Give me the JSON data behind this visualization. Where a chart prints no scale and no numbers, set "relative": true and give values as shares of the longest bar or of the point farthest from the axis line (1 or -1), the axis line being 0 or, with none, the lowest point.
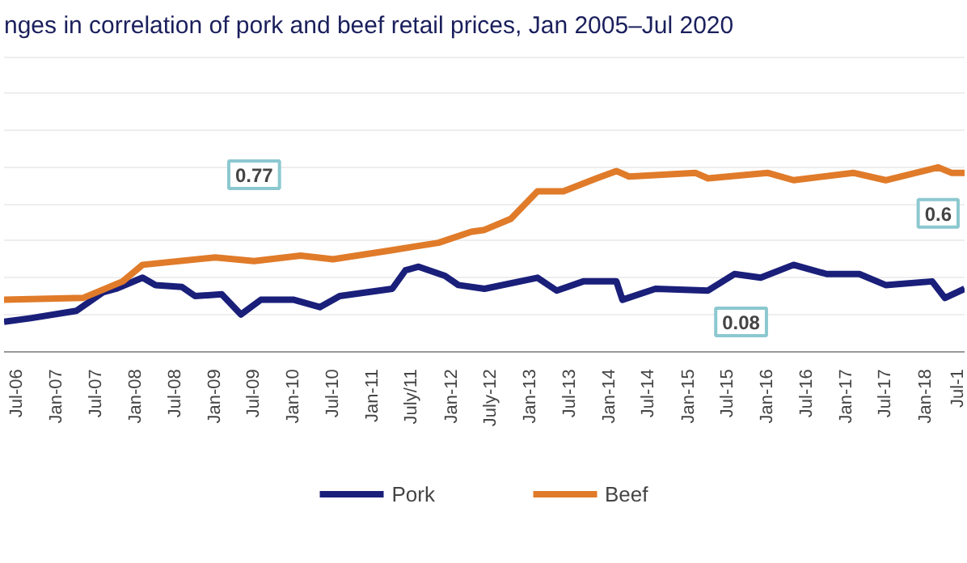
{
  "chart_data": {
    "type": "line",
    "title": "nges in correlation of pork and beef retail prices, Jan 2005–Jul 2020",
    "relative": true,
    "grid": "y",
    "legend": "bottom",
    "line_style": "solid",
    "marker": "none",
    "xlim": [
      "2006-05",
      "2018-07"
    ],
    "xticks": [
      {
        "value": "2006-07",
        "label": "Jul-06"
      },
      {
        "value": "2007-01",
        "label": "Jan-07"
      },
      {
        "value": "2007-07",
        "label": "Jul-07"
      },
      {
        "value": "2008-01",
        "label": "Jan-08"
      },
      {
        "value": "2008-07",
        "label": "Jul-08"
      },
      {
        "value": "2009-01",
        "label": "Jan-09"
      },
      {
        "value": "2009-07",
        "label": "Jul-09"
      },
      {
        "value": "2010-01",
        "label": "Jan-10"
      },
      {
        "value": "2010-07",
        "label": "Jul-10"
      },
      {
        "value": "2011-01",
        "label": "Jan-11"
      },
      {
        "value": "2011-07",
        "label": "July/11"
      },
      {
        "value": "2012-01",
        "label": "Jan-12"
      },
      {
        "value": "2012-07",
        "label": "July-12"
      },
      {
        "value": "2013-01",
        "label": "Jan-13"
      },
      {
        "value": "2013-07",
        "label": "Jul-13"
      },
      {
        "value": "2014-01",
        "label": "Jan-14"
      },
      {
        "value": "2014-07",
        "label": "Jul-14"
      },
      {
        "value": "2015-01",
        "label": "Jan-15"
      },
      {
        "value": "2015-07",
        "label": "Jul-15"
      },
      {
        "value": "2016-01",
        "label": "Jan-16"
      },
      {
        "value": "2016-07",
        "label": "Jul-16"
      },
      {
        "value": "2017-01",
        "label": "Jan-17"
      },
      {
        "value": "2017-07",
        "label": "Jul-17"
      },
      {
        "value": "2018-01",
        "label": "Jan-18"
      },
      {
        "value": "2018-07",
        "label": "Jul-1"
      }
    ],
    "series": [
      {
        "name": "Pork",
        "color": "#1a1f7a",
        "x": [
          "2006-05",
          "2006-09",
          "2007-04",
          "2007-08",
          "2007-10",
          "2008-02",
          "2008-04",
          "2008-08",
          "2008-10",
          "2009-02",
          "2009-05",
          "2009-08",
          "2010-01",
          "2010-05",
          "2010-08",
          "2011-04",
          "2011-06",
          "2011-08",
          "2011-12",
          "2012-02",
          "2012-06",
          "2013-02",
          "2013-05",
          "2013-09",
          "2014-02",
          "2014-03",
          "2014-08",
          "2015-04",
          "2015-08",
          "2015-12",
          "2016-05",
          "2016-10",
          "2017-03",
          "2017-07",
          "2018-02",
          "2018-04",
          "2018-07"
        ],
        "values": [
          0.16,
          0.18,
          0.22,
          0.32,
          0.34,
          0.4,
          0.36,
          0.35,
          0.3,
          0.31,
          0.2,
          0.28,
          0.28,
          0.24,
          0.3,
          0.34,
          0.44,
          0.46,
          0.41,
          0.36,
          0.34,
          0.4,
          0.33,
          0.38,
          0.38,
          0.28,
          0.34,
          0.33,
          0.42,
          0.4,
          0.47,
          0.42,
          0.42,
          0.36,
          0.38,
          0.29,
          0.34
        ]
      },
      {
        "name": "Beef",
        "color": "#e07b2a",
        "x": [
          "2006-05",
          "2007-05",
          "2007-11",
          "2008-02",
          "2009-01",
          "2009-07",
          "2010-02",
          "2010-07",
          "2011-04",
          "2011-11",
          "2012-04",
          "2012-06",
          "2012-10",
          "2013-02",
          "2013-06",
          "2013-11",
          "2014-02",
          "2014-04",
          "2015-02",
          "2015-04",
          "2016-01",
          "2016-05",
          "2017-02",
          "2017-07",
          "2018-03",
          "2018-05",
          "2018-07"
        ],
        "values": [
          0.28,
          0.29,
          0.38,
          0.47,
          0.51,
          0.49,
          0.52,
          0.5,
          0.55,
          0.59,
          0.65,
          0.66,
          0.72,
          0.87,
          0.87,
          0.94,
          0.98,
          0.95,
          0.97,
          0.94,
          0.97,
          0.93,
          0.97,
          0.93,
          1,
          0.97,
          0.97
        ]
      }
    ],
    "annotations": [
      {
        "text": "0.77",
        "x": "2009-07",
        "y": 0.96
      },
      {
        "text": "0.08",
        "x": "2015-09",
        "y": 0.16
      },
      "0.6"
    ]
  }
}
